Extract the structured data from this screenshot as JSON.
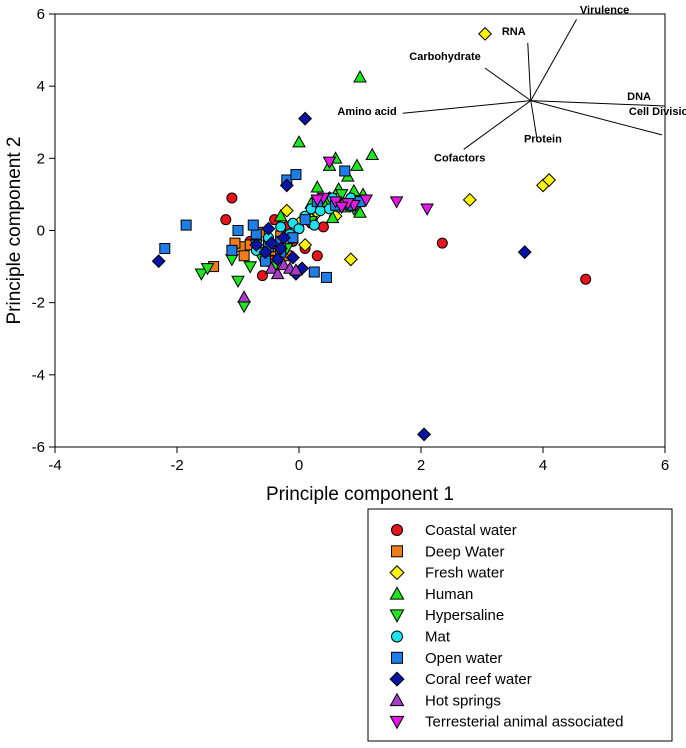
{
  "chart_data": {
    "type": "scatter",
    "title": "",
    "xlabel": "Principle component 1",
    "ylabel": "Principle component 2",
    "xlim": [
      -4,
      6
    ],
    "ylim": [
      -6,
      6
    ],
    "xticks": [
      "-4",
      "-2",
      "0",
      "2",
      "4",
      "6"
    ],
    "yticks": [
      "-6",
      "-4",
      "-2",
      "0",
      "2",
      "4",
      "6"
    ],
    "grid": false,
    "legend_position": "bottom-right-outside",
    "series": [
      {
        "name": "Coastal water",
        "marker": "circle",
        "color": "#e8141c",
        "points": [
          [
            -1.2,
            0.3
          ],
          [
            -1.1,
            0.9
          ],
          [
            -0.5,
            -0.6
          ],
          [
            -0.3,
            -0.2
          ],
          [
            -0.2,
            0.1
          ],
          [
            -0.6,
            -1.25
          ],
          [
            0.1,
            -0.5
          ],
          [
            0.2,
            0.2
          ],
          [
            -0.8,
            -0.3
          ],
          [
            -0.4,
            0.3
          ],
          [
            0.3,
            -0.7
          ],
          [
            0.4,
            0.1
          ],
          [
            -0.1,
            -0.3
          ],
          [
            2.35,
            -0.35
          ],
          [
            4.7,
            -1.35
          ]
        ]
      },
      {
        "name": "Deep Water",
        "marker": "square",
        "color": "#f07c1a",
        "points": [
          [
            -0.95,
            -0.45
          ],
          [
            -0.9,
            -0.7
          ],
          [
            -0.7,
            -0.25
          ],
          [
            -0.6,
            -0.6
          ],
          [
            -0.5,
            -0.3
          ],
          [
            -0.4,
            -0.55
          ],
          [
            -0.3,
            -0.15
          ],
          [
            -0.2,
            -0.7
          ],
          [
            -0.8,
            -0.4
          ],
          [
            -0.45,
            -0.85
          ],
          [
            -0.65,
            -0.05
          ],
          [
            -1.05,
            -0.35
          ],
          [
            -0.35,
            -0.45
          ],
          [
            -0.55,
            -0.75
          ],
          [
            -1.4,
            -1.0
          ]
        ]
      },
      {
        "name": "Fresh water",
        "marker": "diamond",
        "color": "#fcf408",
        "points": [
          [
            0.3,
            0.5
          ],
          [
            0.4,
            0.7
          ],
          [
            0.5,
            0.9
          ],
          [
            0.6,
            0.4
          ],
          [
            0.2,
            0.3
          ],
          [
            0.7,
            0.8
          ],
          [
            -0.2,
            0.55
          ],
          [
            0.85,
            -0.8
          ],
          [
            0.0,
            0.2
          ],
          [
            2.8,
            0.85
          ],
          [
            4.0,
            1.25
          ],
          [
            4.1,
            1.4
          ],
          [
            3.05,
            5.45
          ],
          [
            0.1,
            -0.4
          ]
        ]
      },
      {
        "name": "Human",
        "marker": "triangle-up",
        "color": "#1ee61e",
        "points": [
          [
            1.0,
            4.25
          ],
          [
            0.0,
            2.45
          ],
          [
            0.6,
            2.0
          ],
          [
            1.2,
            2.1
          ],
          [
            0.5,
            1.8
          ],
          [
            0.8,
            1.5
          ],
          [
            0.95,
            1.8
          ],
          [
            0.9,
            1.1
          ],
          [
            1.05,
            1.0
          ],
          [
            0.3,
            1.2
          ],
          [
            0.65,
            1.15
          ],
          [
            1.0,
            0.5
          ],
          [
            0.4,
            0.8
          ],
          [
            0.75,
            0.65
          ],
          [
            0.2,
            0.75
          ],
          [
            -0.3,
            0.4
          ],
          [
            0.55,
            0.35
          ]
        ]
      },
      {
        "name": "Hypersaline",
        "marker": "triangle-down",
        "color": "#1ee61e",
        "points": [
          [
            -1.6,
            -1.2
          ],
          [
            -1.5,
            -1.05
          ],
          [
            -1.1,
            -0.8
          ],
          [
            -1.0,
            -1.4
          ],
          [
            -0.9,
            -2.1
          ],
          [
            -0.8,
            -1.0
          ],
          [
            -0.6,
            -0.8
          ],
          [
            -0.4,
            -1.0
          ],
          [
            -0.2,
            -0.5
          ],
          [
            0.2,
            0.25
          ],
          [
            0.5,
            0.8
          ],
          [
            0.7,
            1.0
          ],
          [
            0.9,
            0.6
          ],
          [
            1.0,
            0.8
          ],
          [
            -0.7,
            -0.4
          ]
        ]
      },
      {
        "name": "Mat",
        "marker": "circle",
        "color": "#1ee2f0",
        "points": [
          [
            -0.3,
            0.1
          ],
          [
            -0.1,
            0.2
          ],
          [
            0.0,
            0.05
          ],
          [
            0.1,
            0.4
          ],
          [
            0.2,
            0.6
          ],
          [
            0.35,
            0.55
          ],
          [
            0.5,
            0.6
          ],
          [
            0.65,
            0.65
          ],
          [
            0.85,
            0.9
          ],
          [
            0.55,
            0.9
          ],
          [
            -0.5,
            -0.2
          ],
          [
            -0.15,
            -0.1
          ],
          [
            0.25,
            0.15
          ],
          [
            -0.7,
            -0.55
          ],
          [
            0.8,
            0.7
          ]
        ]
      },
      {
        "name": "Open water",
        "marker": "square",
        "color": "#1e7ee8",
        "points": [
          [
            -1.85,
            0.15
          ],
          [
            -2.2,
            -0.5
          ],
          [
            -1.0,
            0.0
          ],
          [
            -1.1,
            -0.55
          ],
          [
            -0.3,
            -0.3
          ],
          [
            -0.7,
            -0.1
          ],
          [
            -0.5,
            -0.45
          ],
          [
            -0.1,
            -0.2
          ],
          [
            0.1,
            0.3
          ],
          [
            0.3,
            0.8
          ],
          [
            0.6,
            0.7
          ],
          [
            0.45,
            -1.3
          ],
          [
            0.25,
            -1.15
          ],
          [
            -0.2,
            1.4
          ],
          [
            -0.75,
            0.15
          ],
          [
            -0.05,
            1.55
          ],
          [
            0.85,
            0.7
          ],
          [
            1.0,
            0.8
          ],
          [
            0.75,
            1.65
          ],
          [
            -0.55,
            -0.85
          ],
          [
            -0.3,
            -0.6
          ]
        ]
      },
      {
        "name": "Coral reef water",
        "marker": "diamond",
        "color": "#0a14a4",
        "points": [
          [
            -2.3,
            -0.85
          ],
          [
            0.1,
            3.1
          ],
          [
            -0.2,
            1.25
          ],
          [
            -0.55,
            -0.6
          ],
          [
            -0.45,
            -0.35
          ],
          [
            -0.3,
            -0.5
          ],
          [
            -0.25,
            -0.2
          ],
          [
            -0.5,
            0.05
          ],
          [
            -0.7,
            -0.4
          ],
          [
            -0.1,
            -0.75
          ],
          [
            0.05,
            -1.05
          ],
          [
            -0.05,
            -1.2
          ],
          [
            -0.35,
            -0.8
          ],
          [
            3.7,
            -0.6
          ],
          [
            2.05,
            -5.65
          ]
        ]
      },
      {
        "name": "Hot springs",
        "marker": "triangle-up",
        "color": "#a83cc8",
        "points": [
          [
            -0.45,
            -1.05
          ],
          [
            -0.35,
            -1.2
          ],
          [
            -0.9,
            -1.85
          ],
          [
            -0.25,
            -0.95
          ],
          [
            -0.15,
            -1.05
          ],
          [
            -0.05,
            -1.1
          ]
        ]
      },
      {
        "name": "Terresterial animal associated",
        "marker": "triangle-down",
        "color": "#e418e4",
        "points": [
          [
            0.5,
            1.9
          ],
          [
            1.6,
            0.8
          ],
          [
            2.1,
            0.6
          ],
          [
            0.9,
            0.7
          ],
          [
            0.8,
            0.75
          ],
          [
            0.6,
            0.8
          ],
          [
            0.4,
            0.9
          ],
          [
            1.1,
            0.85
          ],
          [
            0.7,
            0.65
          ],
          [
            0.3,
            0.85
          ]
        ]
      }
    ],
    "biplot_vectors": [
      {
        "name": "Virulence",
        "dx": 0.75,
        "dy": 2.25
      },
      {
        "name": "RNA",
        "dx": -0.05,
        "dy": 1.6
      },
      {
        "name": "Carbohydrate",
        "dx": -0.75,
        "dy": 0.9
      },
      {
        "name": "DNA",
        "dx": 2.2,
        "dy": -0.15
      },
      {
        "name": "Cell Division",
        "dx": 2.15,
        "dy": -0.95
      },
      {
        "name": "Amino acid",
        "dx": -2.1,
        "dy": -0.35
      },
      {
        "name": "Protein",
        "dx": 0.1,
        "dy": -1.05
      },
      {
        "name": "Cofactors",
        "dx": -1.1,
        "dy": -1.35
      }
    ],
    "biplot_origin": [
      3.8,
      3.6
    ]
  }
}
